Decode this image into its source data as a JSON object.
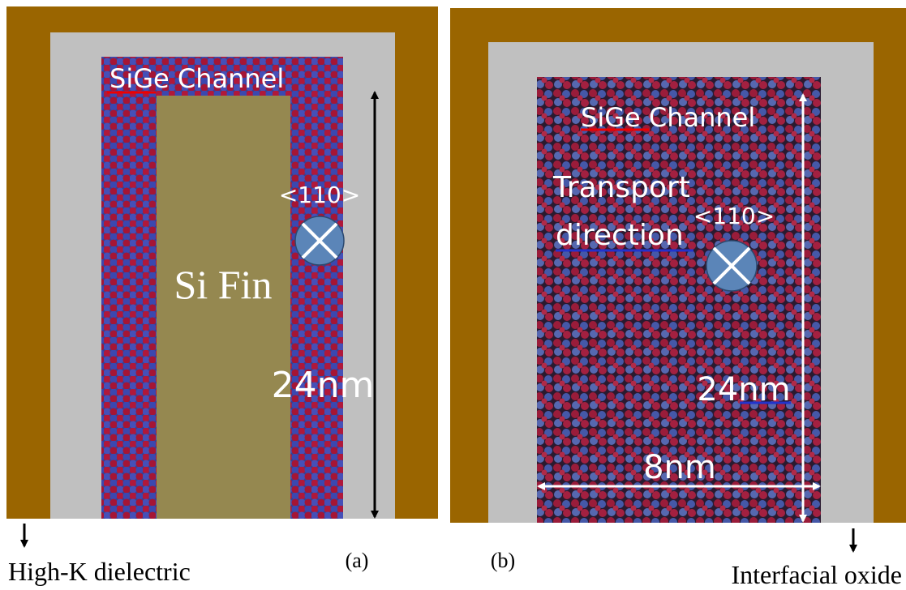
{
  "panel_a": {
    "channel_label": "SiGe Channel",
    "direction_label": "<110>",
    "fin_label": "Si Fin",
    "height_label": "24nm",
    "caption": "(a)",
    "dielectric_label": "High-K dielectric"
  },
  "panel_b": {
    "channel_label": "SiGe Channel",
    "transport_label": [
      "Transport",
      "direction"
    ],
    "direction_label": "<110>",
    "height_label": "24nm",
    "width_label": "8nm",
    "caption": "(b)",
    "oxide_label": "Interfacial oxide"
  }
}
